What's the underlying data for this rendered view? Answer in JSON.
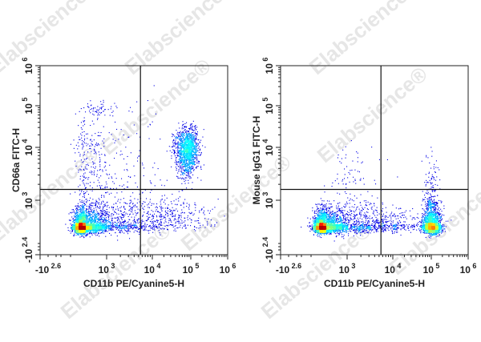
{
  "watermark": "Elabscience®",
  "chart_data": [
    {
      "type": "scatter",
      "subtype": "flow-cytometry-density-dot-plot",
      "xlabel": "CD11b PE/Cyanine5-H",
      "ylabel": "CD66a FITC-H",
      "x_scale": "biexponential",
      "y_scale": "biexponential",
      "xlim": [
        "-10^2.6",
        "10^6"
      ],
      "ylim": [
        "-10^2.4",
        "10^6"
      ],
      "x_ticks": [
        {
          "base": "-10",
          "exp": "2.6",
          "v": -2.6
        },
        {
          "base": "10",
          "exp": "3",
          "v": 3
        },
        {
          "base": "10",
          "exp": "4",
          "v": 4
        },
        {
          "base": "10",
          "exp": "5",
          "v": 5
        },
        {
          "base": "10",
          "exp": "6",
          "v": 6
        }
      ],
      "y_ticks": [
        {
          "base": "-10",
          "exp": "2.4",
          "v": -2.4
        },
        {
          "base": "10",
          "exp": "3",
          "v": 3
        },
        {
          "base": "10",
          "exp": "4",
          "v": 4
        },
        {
          "base": "10",
          "exp": "5",
          "v": 5
        },
        {
          "base": "10",
          "exp": "6",
          "v": 6
        }
      ],
      "quadrant_gate": {
        "x": 5500,
        "y": 1600
      },
      "colormap": "jet density",
      "populations_log10": [
        {
          "cx": 1.8,
          "cy": 1.8,
          "sx": 0.5,
          "sy": 0.42,
          "n": 2600
        },
        {
          "cx": 3.2,
          "cy": 2.0,
          "sx": 0.7,
          "sy": 0.5,
          "n": 900
        },
        {
          "cx": 4.9,
          "cy": 3.95,
          "sx": 0.15,
          "sy": 0.24,
          "n": 1400
        },
        {
          "cx": 2.6,
          "cy": 3.6,
          "sx": 0.8,
          "sy": 0.6,
          "n": 400
        },
        {
          "cx": 2.6,
          "cy": 4.9,
          "sx": 0.4,
          "sy": 0.1,
          "n": 60
        },
        {
          "cx": 4.5,
          "cy": 2.4,
          "sx": 0.6,
          "sy": 0.4,
          "n": 250
        }
      ]
    },
    {
      "type": "scatter",
      "subtype": "flow-cytometry-density-dot-plot",
      "xlabel": "CD11b PE/Cyanine5-H",
      "ylabel": "Mouse IgG1 FITC-H",
      "x_scale": "biexponential",
      "y_scale": "biexponential",
      "xlim": [
        "-10^2.6",
        "10^6"
      ],
      "ylim": [
        "-10^2.4",
        "10^6"
      ],
      "x_ticks": [
        {
          "base": "-10",
          "exp": "2.6",
          "v": -2.6
        },
        {
          "base": "10",
          "exp": "3",
          "v": 3
        },
        {
          "base": "10",
          "exp": "4",
          "v": 4
        },
        {
          "base": "10",
          "exp": "5",
          "v": 5
        },
        {
          "base": "10",
          "exp": "6",
          "v": 6
        }
      ],
      "y_ticks": [
        {
          "base": "-10",
          "exp": "2.4",
          "v": -2.4
        },
        {
          "base": "10",
          "exp": "3",
          "v": 3
        },
        {
          "base": "10",
          "exp": "4",
          "v": 4
        },
        {
          "base": "10",
          "exp": "5",
          "v": 5
        },
        {
          "base": "10",
          "exp": "6",
          "v": 6
        }
      ],
      "quadrant_gate": {
        "x": 5500,
        "y": 1600
      },
      "colormap": "jet density",
      "populations_log10": [
        {
          "cx": 1.8,
          "cy": 1.8,
          "sx": 0.5,
          "sy": 0.4,
          "n": 2600
        },
        {
          "cx": 3.3,
          "cy": 1.9,
          "sx": 0.7,
          "sy": 0.45,
          "n": 1000
        },
        {
          "cx": 5.0,
          "cy": 1.8,
          "sx": 0.12,
          "sy": 0.45,
          "n": 1800
        },
        {
          "cx": 5.0,
          "cy": 3.0,
          "sx": 0.1,
          "sy": 0.4,
          "n": 200
        },
        {
          "cx": 3.0,
          "cy": 3.3,
          "sx": 0.4,
          "sy": 0.4,
          "n": 100
        }
      ]
    }
  ]
}
